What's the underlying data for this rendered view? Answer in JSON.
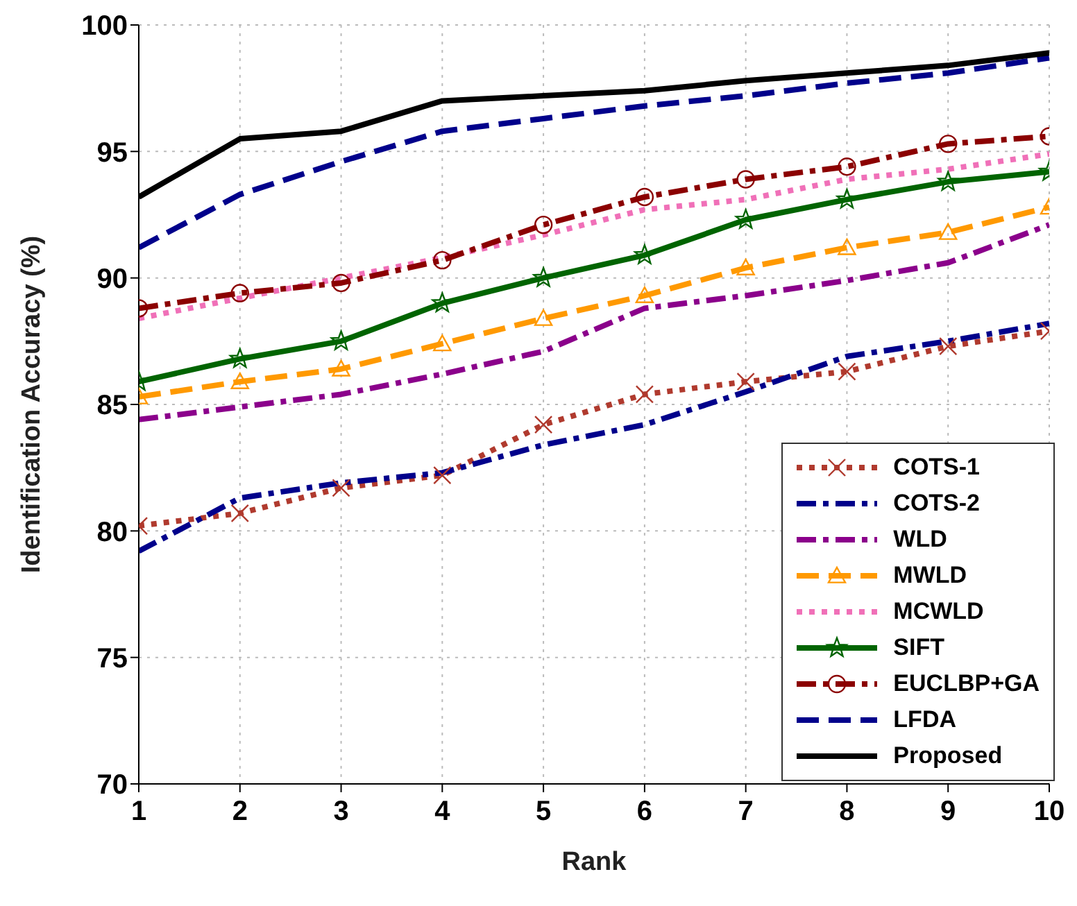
{
  "chart_data": {
    "type": "line",
    "xlabel": "Rank",
    "ylabel": "Identification Accuracy (%)",
    "x": [
      1,
      2,
      3,
      4,
      5,
      6,
      7,
      8,
      9,
      10
    ],
    "xlim": [
      1,
      10
    ],
    "xticks": [
      1,
      2,
      3,
      4,
      5,
      6,
      7,
      8,
      9,
      10
    ],
    "ylim": [
      70,
      100
    ],
    "yticks": [
      70,
      75,
      80,
      85,
      90,
      95,
      100
    ],
    "grid": true,
    "legend": "bottom right",
    "series": [
      {
        "name": "COTS-1",
        "color": "#b03a2e",
        "marker": "cross",
        "line_style": "dotted",
        "values": [
          80.2,
          80.7,
          81.7,
          82.2,
          84.2,
          85.4,
          85.9,
          86.3,
          87.3,
          87.9
        ]
      },
      {
        "name": "COTS-2",
        "color": "#00008b",
        "marker": "none",
        "line_style": "dashdot",
        "values": [
          79.2,
          81.3,
          81.9,
          82.3,
          83.4,
          84.2,
          85.5,
          86.9,
          87.5,
          88.2
        ]
      },
      {
        "name": "WLD",
        "color": "#8b008b",
        "marker": "none",
        "line_style": "dashdot",
        "values": [
          84.4,
          84.9,
          85.4,
          86.2,
          87.1,
          88.8,
          89.3,
          89.9,
          90.6,
          92.1
        ]
      },
      {
        "name": "MWLD",
        "color": "#ff9900",
        "marker": "triangle",
        "line_style": "dashed",
        "values": [
          85.3,
          85.9,
          86.4,
          87.4,
          88.4,
          89.3,
          90.4,
          91.2,
          91.8,
          92.8
        ]
      },
      {
        "name": "MCWLD",
        "color": "#f070b8",
        "marker": "none",
        "line_style": "dotted",
        "values": [
          88.4,
          89.2,
          90.0,
          90.8,
          91.7,
          92.7,
          93.1,
          93.9,
          94.3,
          94.9
        ]
      },
      {
        "name": "SIFT",
        "color": "#006400",
        "marker": "star",
        "line_style": "solid",
        "values": [
          85.9,
          86.8,
          87.5,
          89.0,
          90.0,
          90.9,
          92.3,
          93.1,
          93.8,
          94.2
        ]
      },
      {
        "name": "EUCLBP+GA",
        "color": "#8b0000",
        "marker": "circle",
        "line_style": "dashdot",
        "values": [
          88.8,
          89.4,
          89.8,
          90.7,
          92.1,
          93.2,
          93.9,
          94.4,
          95.3,
          95.6
        ]
      },
      {
        "name": "LFDA",
        "color": "#00008b",
        "marker": "none",
        "line_style": "dashed",
        "values": [
          91.2,
          93.3,
          94.6,
          95.8,
          96.3,
          96.8,
          97.2,
          97.7,
          98.1,
          98.7
        ]
      },
      {
        "name": "Proposed",
        "color": "#000000",
        "marker": "none",
        "line_style": "solid",
        "values": [
          93.2,
          95.5,
          95.8,
          97.0,
          97.2,
          97.4,
          97.8,
          98.1,
          98.4,
          98.9
        ]
      }
    ]
  }
}
